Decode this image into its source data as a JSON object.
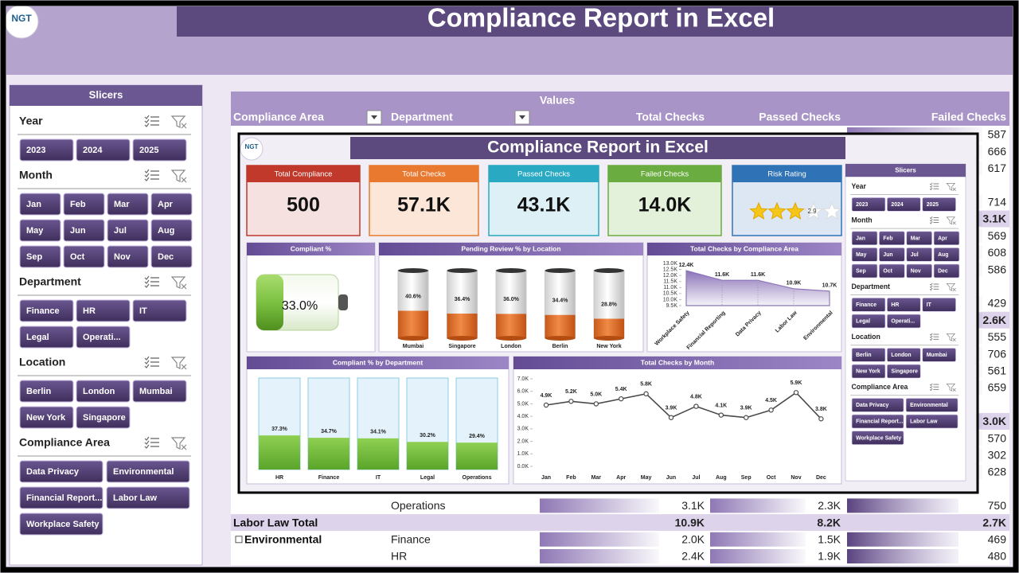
{
  "header": {
    "logo": "NGT",
    "title": "Compliance Report in Excel"
  },
  "slicers": {
    "title": "Slicers",
    "groups": [
      {
        "name": "Year",
        "items": [
          "2023",
          "2024",
          "2025"
        ]
      },
      {
        "name": "Month",
        "items": [
          "Jan",
          "Feb",
          "Mar",
          "Apr",
          "May",
          "Jun",
          "Jul",
          "Aug",
          "Sep",
          "Oct",
          "Nov",
          "Dec"
        ]
      },
      {
        "name": "Department",
        "items": [
          "Finance",
          "HR",
          "IT",
          "Legal",
          "Operati..."
        ]
      },
      {
        "name": "Location",
        "items": [
          "Berlin",
          "London",
          "Mumbai",
          "New York",
          "Singapore"
        ]
      },
      {
        "name": "Compliance Area",
        "items": [
          "Data Privacy",
          "Environmental",
          "Financial Report...",
          "Labor Law",
          "Workplace Safety"
        ]
      }
    ]
  },
  "pivot": {
    "values_label": "Values",
    "columns": [
      "Compliance Area",
      "Department",
      "Total Checks",
      "Passed Checks",
      "Failed Checks"
    ],
    "failed_column": [
      "587",
      "666",
      "617",
      null,
      "714",
      "3.1K",
      "569",
      "608",
      "586",
      null,
      "429",
      "2.6K",
      "555",
      "706",
      "561",
      "659",
      null,
      "3.0K",
      "570",
      "302",
      "628",
      null
    ],
    "rows": [
      {
        "department": "Operations",
        "total": "3.1K",
        "passed": "2.3K",
        "failed": "750"
      },
      {
        "area": "Labor Law Total",
        "total": "10.9K",
        "passed": "8.2K",
        "failed": "2.7K"
      },
      {
        "area": "Environmental",
        "department": "Finance",
        "total": "2.0K",
        "passed": "1.5K",
        "failed": "469"
      },
      {
        "department": "HR",
        "total": "2.4K",
        "passed": "1.9K",
        "failed": "480"
      }
    ]
  },
  "dashboard": {
    "logo": "NGT",
    "title": "Compliance Report in Excel",
    "kpis": [
      {
        "label": "Total Compliance",
        "value": "500"
      },
      {
        "label": "Total Checks",
        "value": "57.1K"
      },
      {
        "label": "Passed Checks",
        "value": "43.1K"
      },
      {
        "label": "Failed Checks",
        "value": "14.0K"
      },
      {
        "label": "Risk Rating",
        "rating": 2.9
      }
    ]
  },
  "chart_data": [
    {
      "type": "progress",
      "title": "Compliant %",
      "values": [
        33.0
      ],
      "value_labels": [
        "33.0%"
      ],
      "ylim": [
        0,
        100
      ],
      "color": "#7cc142"
    },
    {
      "type": "cylinder",
      "title": "Pending Review % by Location",
      "categories": [
        "Mumbai",
        "Singapore",
        "London",
        "Berlin",
        "New York"
      ],
      "values": [
        40.6,
        36.4,
        36.0,
        34.4,
        28.8
      ],
      "value_labels": [
        "40.6%",
        "36.4%",
        "36.0%",
        "34.4%",
        "28.8%"
      ],
      "ylim": [
        0,
        100
      ],
      "color": "#e8702a"
    },
    {
      "type": "area",
      "title": "Total Checks by Compliance Area",
      "categories": [
        "Workplace Safety",
        "Financial Reporting",
        "Data Privacy",
        "Labor Law",
        "Environmental"
      ],
      "values": [
        12400,
        11600,
        11600,
        10900,
        10700
      ],
      "value_labels": [
        "12.4K",
        "11.6K",
        "11.6K",
        "10.9K",
        "10.7K"
      ],
      "ylim": [
        9500,
        13000
      ],
      "yticks": [
        {
          "value": 9500,
          "label": "9.5K"
        },
        {
          "value": 10000,
          "label": "10.0K"
        },
        {
          "value": 10500,
          "label": "10.5K"
        },
        {
          "value": 11000,
          "label": "11.0K"
        },
        {
          "value": 11500,
          "label": "11.5K"
        },
        {
          "value": 12000,
          "label": "12.0K"
        },
        {
          "value": 12500,
          "label": "12.5K"
        },
        {
          "value": 13000,
          "label": "13.0K"
        }
      ],
      "color": "#8b73b8"
    },
    {
      "type": "bar",
      "title": "Compliant % by Department",
      "categories": [
        "HR",
        "Finance",
        "IT",
        "Legal",
        "Operations"
      ],
      "values": [
        37.3,
        34.7,
        34.1,
        30.2,
        29.4
      ],
      "value_labels": [
        "37.3%",
        "34.7%",
        "34.1%",
        "30.2%",
        "29.4%"
      ],
      "ylim": [
        0,
        100
      ],
      "color": "#7cc142"
    },
    {
      "type": "line",
      "title": "Total Checks by Month",
      "categories": [
        "Jan",
        "Feb",
        "Mar",
        "Apr",
        "May",
        "Jun",
        "Jul",
        "Aug",
        "Sep",
        "Oct",
        "Nov",
        "Dec"
      ],
      "values": [
        4900,
        5200,
        5000,
        5400,
        5800,
        3900,
        4800,
        4100,
        3900,
        4500,
        5900,
        3800
      ],
      "value_labels": [
        "4.9K",
        "5.2K",
        "5.0K",
        "5.4K",
        "5.8K",
        "3.9K",
        "4.8K",
        "4.1K",
        "3.9K",
        "4.5K",
        "5.9K",
        "3.8K"
      ],
      "ylim": [
        0,
        7000
      ],
      "yticks": [
        {
          "value": 0,
          "label": "0.0K"
        },
        {
          "value": 1000,
          "label": "1.0K"
        },
        {
          "value": 2000,
          "label": "2.0K"
        },
        {
          "value": 3000,
          "label": "3.0K"
        },
        {
          "value": 4000,
          "label": "4.0K"
        },
        {
          "value": 5000,
          "label": "5.0K"
        },
        {
          "value": 6000,
          "label": "6.0K"
        },
        {
          "value": 7000,
          "label": "7.0K"
        }
      ],
      "color": "#4a4a4a"
    }
  ]
}
